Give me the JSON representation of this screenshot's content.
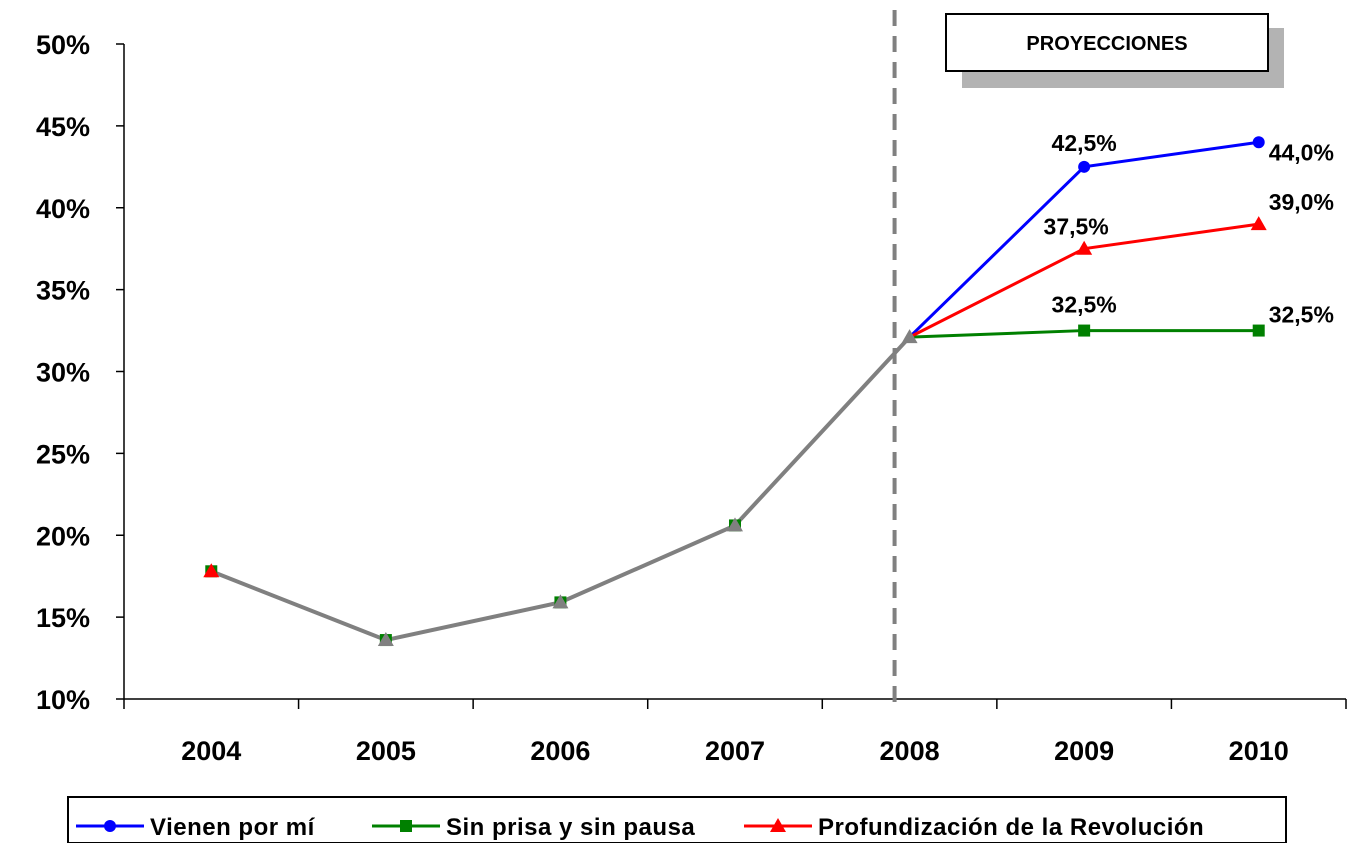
{
  "chart_data": {
    "type": "line",
    "title": "",
    "xlabel": "",
    "ylabel": "",
    "categories": [
      "2004",
      "2005",
      "2006",
      "2007",
      "2008",
      "2009",
      "2010"
    ],
    "y_ticks": [
      "10%",
      "15%",
      "20%",
      "25%",
      "30%",
      "35%",
      "40%",
      "45%",
      "50%"
    ],
    "ylim": [
      10,
      50
    ],
    "grid": false,
    "legend_position": "bottom",
    "historical": {
      "color": "#808080",
      "values": [
        17.8,
        13.6,
        15.9,
        20.6,
        32.1
      ]
    },
    "projection_start": "2008",
    "projection_box_label": "PROYECCIONES",
    "series": [
      {
        "name": "Vienen por mí",
        "color": "#0000FF",
        "marker": "circle",
        "values": [
          17.8,
          13.6,
          15.9,
          20.6,
          32.1,
          42.5,
          44.0
        ],
        "labels": [
          "",
          "",
          "",
          "",
          "",
          "42,5%",
          "44,0%"
        ]
      },
      {
        "name": "Sin prisa y sin pausa",
        "color": "#008000",
        "marker": "square",
        "values": [
          17.8,
          13.6,
          15.9,
          20.6,
          32.1,
          32.5,
          32.5
        ],
        "labels": [
          "",
          "",
          "",
          "",
          "",
          "32,5%",
          "32,5%"
        ]
      },
      {
        "name": "Profundización de la Revolución",
        "color": "#FF0000",
        "marker": "triangle",
        "values": [
          17.8,
          13.6,
          15.9,
          20.6,
          32.1,
          37.5,
          39.0
        ],
        "labels": [
          "",
          "",
          "",
          "",
          "",
          "37,5%",
          "39,0%"
        ]
      }
    ]
  }
}
